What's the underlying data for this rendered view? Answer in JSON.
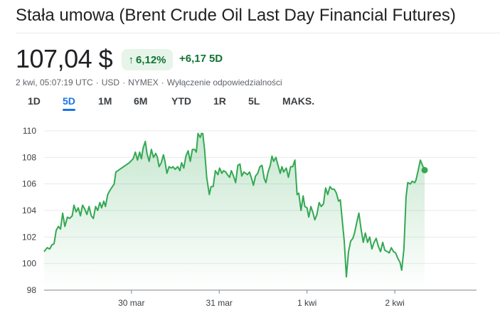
{
  "title": "Stała umowa (Brent Crude Oil Last Day Financial Futures)",
  "price": "107,04 $",
  "change_badge": {
    "arrow": "↑",
    "percent": "6,12%"
  },
  "change_abs": {
    "value": "+6,17",
    "period": "5D"
  },
  "meta": {
    "timestamp": "2 kwi, 05:07:19 UTC",
    "currency": "USD",
    "exchange": "NYMEX",
    "disclaimer": "Wyłączenie odpowiedzialności",
    "separator": "·"
  },
  "tabs": [
    "1D",
    "5D",
    "1M",
    "6M",
    "YTD",
    "1R",
    "5L",
    "MAKS."
  ],
  "active_tab": "5D",
  "colors": {
    "line": "#34a853",
    "accent": "#1a73e8",
    "positive": "#137333",
    "badge_bg": "#e6f4ea"
  },
  "chart_data": {
    "type": "area",
    "title": "",
    "xlabel": "",
    "ylabel": "",
    "ylim": [
      98,
      110
    ],
    "yticks": [
      98,
      100,
      102,
      104,
      106,
      108,
      110
    ],
    "ytick_labels": [
      "98",
      "100",
      "102",
      "104",
      "106",
      "108",
      "110"
    ],
    "x_range": [
      0,
      100
    ],
    "xticks": [
      {
        "x": 20.2,
        "label": "30 mar"
      },
      {
        "x": 40.5,
        "label": "31 mar"
      },
      {
        "x": 60.8,
        "label": "1 kwi"
      },
      {
        "x": 81.1,
        "label": "2 kwi"
      }
    ],
    "series": [
      {
        "name": "Brent",
        "points": [
          [
            0,
            100.9
          ],
          [
            0.7,
            101.2
          ],
          [
            1.3,
            101.1
          ],
          [
            1.8,
            101.4
          ],
          [
            2.3,
            101.5
          ],
          [
            2.8,
            102.5
          ],
          [
            3.3,
            102.8
          ],
          [
            3.8,
            102.6
          ],
          [
            4.3,
            103.8
          ],
          [
            4.8,
            102.8
          ],
          [
            5.4,
            103.5
          ],
          [
            5.9,
            103.4
          ],
          [
            6.5,
            103.6
          ],
          [
            6.9,
            104.4
          ],
          [
            7.4,
            103.9
          ],
          [
            7.9,
            104.2
          ],
          [
            8.4,
            103.6
          ],
          [
            8.9,
            104.4
          ],
          [
            9.4,
            104.1
          ],
          [
            9.9,
            103.7
          ],
          [
            10.4,
            104.3
          ],
          [
            10.9,
            103.6
          ],
          [
            11.4,
            103.4
          ],
          [
            11.9,
            104.3
          ],
          [
            12.4,
            104.0
          ],
          [
            12.9,
            104.6
          ],
          [
            13.3,
            104.2
          ],
          [
            13.8,
            104.7
          ],
          [
            14.2,
            104.3
          ],
          [
            14.7,
            105.2
          ],
          [
            15.2,
            105.5
          ],
          [
            16.2,
            106.0
          ],
          [
            16.6,
            106.9
          ],
          [
            19.7,
            107.6
          ],
          [
            20.6,
            107.9
          ],
          [
            21.1,
            108.4
          ],
          [
            21.6,
            107.8
          ],
          [
            22.1,
            108.4
          ],
          [
            22.5,
            107.9
          ],
          [
            22.9,
            108.7
          ],
          [
            23.4,
            109.2
          ],
          [
            23.8,
            108.3
          ],
          [
            24.3,
            107.7
          ],
          [
            24.8,
            108.6
          ],
          [
            25.3,
            108.0
          ],
          [
            25.8,
            108.3
          ],
          [
            26.2,
            108.0
          ],
          [
            26.6,
            107.3
          ],
          [
            27.1,
            107.6
          ],
          [
            27.6,
            108.2
          ],
          [
            27.9,
            107.8
          ],
          [
            28.4,
            106.8
          ],
          [
            28.9,
            107.3
          ],
          [
            29.4,
            107.2
          ],
          [
            29.8,
            107.3
          ],
          [
            30.3,
            107.1
          ],
          [
            30.9,
            107.3
          ],
          [
            31.4,
            107.0
          ],
          [
            31.8,
            107.6
          ],
          [
            32.3,
            107.2
          ],
          [
            32.8,
            108.1
          ],
          [
            33.3,
            108.5
          ],
          [
            33.8,
            107.7
          ],
          [
            34.3,
            108.6
          ],
          [
            34.8,
            108.6
          ],
          [
            35.2,
            108.4
          ],
          [
            35.6,
            109.8
          ],
          [
            36.1,
            109.5
          ],
          [
            36.4,
            109.8
          ],
          [
            36.7,
            109.8
          ],
          [
            37.1,
            108.6
          ],
          [
            37.6,
            106.5
          ],
          [
            38.2,
            105.2
          ],
          [
            38.6,
            105.8
          ],
          [
            39.1,
            105.8
          ],
          [
            39.6,
            107.0
          ],
          [
            40.2,
            106.7
          ],
          [
            40.6,
            107.2
          ],
          [
            41.1,
            106.8
          ],
          [
            41.5,
            107.0
          ],
          [
            42.0,
            106.9
          ],
          [
            42.4,
            106.7
          ],
          [
            42.9,
            106.5
          ],
          [
            43.3,
            107.0
          ],
          [
            43.8,
            106.6
          ],
          [
            44.3,
            106.1
          ],
          [
            44.8,
            107.4
          ],
          [
            45.3,
            107.5
          ],
          [
            45.7,
            106.6
          ],
          [
            46.2,
            106.9
          ],
          [
            46.6,
            106.8
          ],
          [
            47.0,
            106.7
          ],
          [
            47.5,
            106.9
          ],
          [
            48.0,
            106.4
          ],
          [
            48.4,
            105.9
          ],
          [
            48.9,
            106.6
          ],
          [
            49.4,
            106.8
          ],
          [
            49.9,
            107.3
          ],
          [
            50.4,
            107.4
          ],
          [
            50.9,
            106.4
          ],
          [
            51.3,
            106.1
          ],
          [
            51.8,
            106.9
          ],
          [
            52.3,
            107.4
          ],
          [
            52.7,
            108.1
          ],
          [
            53.1,
            107.7
          ],
          [
            53.6,
            108.0
          ],
          [
            54.1,
            107.4
          ],
          [
            54.6,
            106.8
          ],
          [
            55.0,
            107.3
          ],
          [
            55.4,
            106.9
          ],
          [
            56.0,
            107.2
          ],
          [
            56.5,
            106.5
          ],
          [
            57.0,
            107.3
          ],
          [
            57.5,
            107.3
          ],
          [
            58.0,
            107.8
          ],
          [
            58.5,
            105.2
          ],
          [
            58.9,
            105.3
          ],
          [
            59.4,
            104.0
          ],
          [
            59.9,
            105.1
          ],
          [
            60.3,
            104.3
          ],
          [
            60.8,
            104.2
          ],
          [
            61.2,
            103.5
          ],
          [
            61.7,
            104.3
          ],
          [
            62.2,
            103.8
          ],
          [
            62.6,
            103.3
          ],
          [
            63.1,
            103.7
          ],
          [
            63.6,
            104.6
          ],
          [
            64.1,
            104.3
          ],
          [
            64.6,
            104.5
          ],
          [
            65.1,
            105.7
          ],
          [
            65.6,
            105.2
          ],
          [
            66.1,
            105.8
          ],
          [
            66.6,
            105.6
          ],
          [
            67.1,
            105.6
          ],
          [
            67.6,
            105.3
          ],
          [
            68.1,
            104.7
          ],
          [
            68.5,
            104.8
          ],
          [
            69.0,
            103.1
          ],
          [
            69.4,
            101.7
          ],
          [
            69.9,
            99.0
          ],
          [
            70.4,
            100.9
          ],
          [
            70.9,
            101.7
          ],
          [
            71.4,
            101.9
          ],
          [
            71.8,
            102.3
          ],
          [
            72.3,
            103.1
          ],
          [
            72.8,
            103.8
          ],
          [
            73.3,
            102.6
          ],
          [
            73.8,
            101.6
          ],
          [
            74.3,
            102.3
          ],
          [
            74.8,
            101.6
          ],
          [
            75.3,
            102.0
          ],
          [
            75.8,
            101.1
          ],
          [
            76.3,
            101.6
          ],
          [
            76.8,
            101.9
          ],
          [
            77.3,
            101.3
          ],
          [
            77.8,
            100.9
          ],
          [
            78.3,
            101.6
          ],
          [
            78.8,
            101.0
          ],
          [
            79.4,
            100.9
          ],
          [
            79.8,
            100.8
          ],
          [
            80.3,
            101.2
          ],
          [
            80.8,
            100.9
          ],
          [
            81.3,
            100.8
          ],
          [
            81.8,
            100.4
          ],
          [
            82.3,
            100.1
          ],
          [
            82.7,
            99.5
          ],
          [
            83.2,
            101.1
          ],
          [
            83.7,
            105.0
          ],
          [
            84.1,
            106.1
          ],
          [
            84.7,
            106.0
          ],
          [
            85.1,
            106.2
          ],
          [
            85.7,
            106.1
          ],
          [
            86.0,
            106.3
          ],
          [
            86.5,
            107.0
          ],
          [
            87.0,
            107.8
          ],
          [
            87.5,
            107.4
          ],
          [
            88.0,
            107.04
          ]
        ],
        "last_value": 107.04
      }
    ]
  }
}
